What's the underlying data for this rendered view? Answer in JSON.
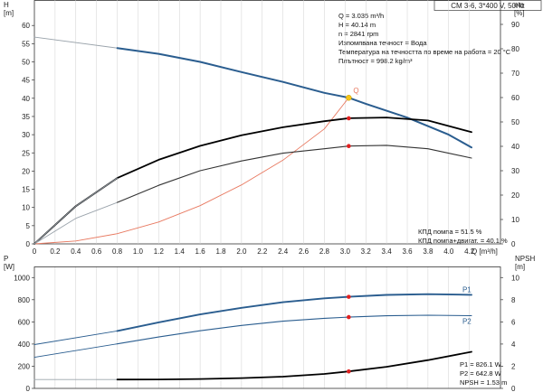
{
  "title_box": "CM 3-6, 3*400 V, 50Hz",
  "axes": {
    "top_left_symbol": "H",
    "top_left_unit": "[m]",
    "top_right_symbol": "eta",
    "top_right_unit": "[%]",
    "bottom_left_symbol": "P",
    "bottom_left_unit": "[W]",
    "bottom_right_symbol": "NPSH",
    "bottom_right_unit": "[m]",
    "x_unit": "Q [m³/h]"
  },
  "info_top": [
    "Q = 3.035 m³/h",
    "H = 40.14 m",
    "n = 2841 rpm",
    "Изпомпвана течност = Вода",
    "Температура на течността по време на работа = 20 °C",
    "Плътност = 998.2 kg/m³"
  ],
  "info_eff": [
    "КПД помпа = 51.5 %",
    "КПД помпа+двигат. = 40.1 %"
  ],
  "info_bottom": [
    "P1 = 826.1 W",
    "P2 = 642.8 W",
    "NPSH = 1.53 m"
  ],
  "colors": {
    "head": "#2a5d8f",
    "system": "#e8785f",
    "eta_pump": "#000000",
    "eta_total": "#000000",
    "p1": "#2a5d8f",
    "p2": "#2a5d8f",
    "npsh": "#000000",
    "thin": "#9aa3ab",
    "dot": "#e02020",
    "op_marker": "#f5c518",
    "grid": "#d0d0d0"
  },
  "chart_data": [
    {
      "type": "line",
      "panel": "top",
      "x_ticks": [
        "0",
        "0.2",
        "0.4",
        "0.6",
        "0.8",
        "1.0",
        "1.2",
        "1.4",
        "1.6",
        "1.8",
        "2.0",
        "2.2",
        "2.4",
        "2.6",
        "2.8",
        "3.0",
        "3.2",
        "3.4",
        "3.6",
        "3.8",
        "4.0",
        "4.2"
      ],
      "y_left_ticks": [
        "0",
        "5",
        "10",
        "15",
        "20",
        "25",
        "30",
        "35",
        "40",
        "45",
        "50",
        "55",
        "60"
      ],
      "y_right_ticks": [
        "0",
        "10",
        "20",
        "30",
        "40",
        "50",
        "60",
        "70",
        "80",
        "90"
      ],
      "xlim": [
        0,
        4.5
      ],
      "ylim_left": [
        0,
        67
      ],
      "ylim_right": [
        0,
        100
      ],
      "series": [
        {
          "key": "head",
          "axis": "left",
          "thin_x": [
            0,
            0.8
          ],
          "x": [
            0.8,
            1.2,
            1.6,
            2.0,
            2.4,
            2.8,
            3.035,
            3.2,
            3.6,
            4.0,
            4.22
          ],
          "y": [
            53.8,
            52.2,
            50.0,
            47.2,
            44.5,
            41.5,
            40.14,
            38.5,
            34.7,
            30.0,
            26.5
          ],
          "thin_y": [
            56.8,
            53.8
          ]
        },
        {
          "key": "system",
          "axis": "left",
          "x": [
            0,
            0.4,
            0.8,
            1.2,
            1.6,
            2.0,
            2.4,
            2.8,
            3.035
          ],
          "y": [
            0,
            0.8,
            2.8,
            6.0,
            10.5,
            16.2,
            23.0,
            31.6,
            40.14
          ]
        },
        {
          "key": "eta_pump",
          "axis": "right",
          "x": [
            0,
            0.4,
            0.8,
            1.2,
            1.6,
            2.0,
            2.4,
            2.8,
            3.035,
            3.4,
            3.8,
            4.22
          ],
          "y": [
            0,
            15.5,
            27.0,
            34.5,
            40.2,
            44.5,
            47.8,
            50.3,
            51.5,
            51.8,
            50.6,
            45.8
          ]
        },
        {
          "key": "eta_total",
          "axis": "right",
          "thin_x": [
            0,
            0.4,
            0.8
          ],
          "thin_y": [
            0,
            10.5,
            17.0
          ],
          "x": [
            0.8,
            1.2,
            1.6,
            2.0,
            2.4,
            2.8,
            3.035,
            3.4,
            3.8,
            4.22
          ],
          "y": [
            17.0,
            24.0,
            30.0,
            34.0,
            37.2,
            39.0,
            40.1,
            40.4,
            39.0,
            35.2
          ]
        }
      ],
      "operating_point": {
        "x": 3.035,
        "y": 40.14,
        "label": "Q"
      }
    },
    {
      "type": "line",
      "panel": "bottom",
      "y_left_ticks": [
        "0",
        "200",
        "400",
        "600",
        "800",
        "1000"
      ],
      "y_right_ticks": [
        "0",
        "2",
        "4",
        "6",
        "8",
        "10"
      ],
      "xlim": [
        0,
        4.5
      ],
      "ylim_left": [
        0,
        1100
      ],
      "ylim_right": [
        0,
        11
      ],
      "series": [
        {
          "key": "p1",
          "name": "P1",
          "axis": "left",
          "thin_x": [
            0,
            0.8
          ],
          "thin_y": [
            395,
            518
          ],
          "x": [
            0.8,
            1.2,
            1.6,
            2.0,
            2.4,
            2.8,
            3.035,
            3.4,
            3.8,
            4.22
          ],
          "y": [
            518,
            596,
            667,
            727,
            777,
            812,
            826.1,
            843,
            850,
            844
          ]
        },
        {
          "key": "p2",
          "name": "P2",
          "axis": "left",
          "thin_x": [
            0,
            0.8
          ],
          "thin_y": [
            280,
            402
          ],
          "x": [
            0.8,
            1.2,
            1.6,
            2.0,
            2.4,
            2.8,
            3.035,
            3.4,
            3.8,
            4.22
          ],
          "y": [
            402,
            464,
            520,
            568,
            606,
            632,
            642.8,
            655,
            660,
            656
          ]
        },
        {
          "key": "npsh",
          "name": "NPSH",
          "axis": "right",
          "thin_x": [
            0,
            0.8
          ],
          "thin_y": [
            0.8,
            0.8
          ],
          "x": [
            0.8,
            1.2,
            1.6,
            2.0,
            2.4,
            2.8,
            3.035,
            3.4,
            3.8,
            4.22
          ],
          "y": [
            0.8,
            0.81,
            0.85,
            0.93,
            1.06,
            1.3,
            1.53,
            1.95,
            2.55,
            3.3
          ]
        }
      ]
    }
  ]
}
